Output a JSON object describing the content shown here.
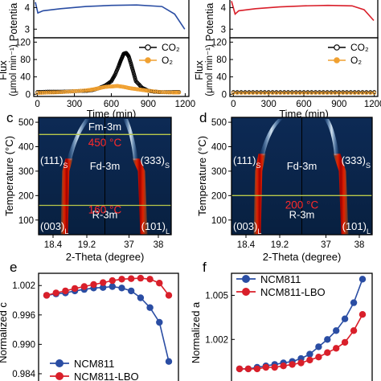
{
  "panel_labels": {
    "c": "c",
    "d": "d",
    "e": "e",
    "f": "f"
  },
  "colors": {
    "ncm811": "#2a4da3",
    "lbo": "#d91f2a",
    "co2": "#000000",
    "o2": "#f0a030",
    "phase_line": "#b8c84a",
    "heatmap_bg": "#08234a",
    "red_text": "#ff2a2a"
  },
  "chart_data": [
    {
      "id": "ab-potential-left",
      "type": "line",
      "ylabel": "Potentia",
      "yticks": [
        "4",
        "3"
      ],
      "ylim": [
        2.6,
        4.5
      ],
      "xlim": [
        0,
        1200
      ],
      "series": [
        {
          "color": "#2a4da3",
          "x": [
            0,
            20,
            60,
            200,
            400,
            600,
            800,
            1000,
            1100,
            1180
          ],
          "y": [
            4.25,
            3.75,
            3.85,
            3.95,
            4.05,
            4.1,
            4.12,
            4.05,
            3.7,
            3.0
          ]
        }
      ]
    },
    {
      "id": "ab-flux-left",
      "type": "line",
      "ylabel": "Flux",
      "ylabel2": "(μmol min⁻¹)",
      "xlabel": "Time (min)",
      "xticks": [
        0,
        300,
        600,
        900,
        1200
      ],
      "yticks": [
        0,
        40,
        80,
        120
      ],
      "xlim": [
        -30,
        1230
      ],
      "ylim": [
        -5,
        130
      ],
      "legend": [
        "CO₂",
        "O₂"
      ],
      "series": [
        {
          "name": "CO₂",
          "color": "#000000",
          "x": [
            0,
            100,
            200,
            300,
            400,
            450,
            500,
            550,
            600,
            630,
            660,
            680,
            700,
            720,
            740,
            760,
            780,
            800,
            850,
            900,
            950,
            1000,
            1100,
            1150
          ],
          "y": [
            5,
            6,
            6,
            7,
            8,
            10,
            14,
            20,
            30,
            45,
            65,
            80,
            93,
            95,
            88,
            70,
            50,
            30,
            15,
            8,
            6,
            5,
            5,
            5
          ]
        },
        {
          "name": "O₂",
          "color": "#f0a030",
          "x": [
            0,
            100,
            200,
            300,
            400,
            450,
            500,
            550,
            600,
            650,
            700,
            750,
            800,
            850,
            900,
            1000,
            1100,
            1150
          ],
          "y": [
            3,
            4,
            5,
            7,
            9,
            11,
            14,
            17,
            18,
            19,
            17,
            14,
            12,
            10,
            8,
            5,
            4,
            4
          ]
        }
      ]
    },
    {
      "id": "ab-potential-right",
      "type": "line",
      "ylabel": "Potentia",
      "yticks": [
        "4",
        "3"
      ],
      "ylim": [
        2.6,
        4.5
      ],
      "xlim": [
        0,
        1200
      ],
      "series": [
        {
          "color": "#d91f2a",
          "x": [
            0,
            30,
            60,
            200,
            400,
            600,
            800,
            1000,
            1100,
            1180
          ],
          "y": [
            4.3,
            3.7,
            3.85,
            3.95,
            4.03,
            4.08,
            4.1,
            4.08,
            3.9,
            3.4
          ]
        }
      ]
    },
    {
      "id": "ab-flux-right",
      "type": "line",
      "ylabel": "Flux",
      "ylabel2": "(μmol min⁻¹)",
      "xlabel": "Time (min)",
      "xticks": [
        0,
        300,
        600,
        900,
        1200
      ],
      "yticks": [
        0,
        40,
        80,
        120
      ],
      "xlim": [
        -30,
        1230
      ],
      "ylim": [
        -5,
        130
      ],
      "legend": [
        "CO₂",
        "O₂"
      ],
      "series": [
        {
          "name": "CO₂",
          "color": "#000000",
          "x": [
            0,
            200,
            400,
            600,
            800,
            1000,
            1200
          ],
          "y": [
            5,
            5,
            5,
            5,
            5,
            5,
            5
          ]
        },
        {
          "name": "O₂",
          "color": "#f0a030",
          "x": [
            0,
            200,
            400,
            600,
            800,
            1000,
            1200
          ],
          "y": [
            3,
            3,
            3,
            3,
            3,
            3,
            3
          ]
        }
      ]
    },
    {
      "id": "c",
      "type": "heatmap",
      "ylabel": "Temperature (°C)",
      "xlabel": "2-Theta (degree)",
      "yticks": [
        500,
        400,
        300,
        200,
        100
      ],
      "ylim": [
        40,
        520
      ],
      "xticks_left": [
        "18.4",
        "19.2"
      ],
      "xticks_right": [
        "37",
        "38"
      ],
      "phases": [
        "Fm-3m",
        "Fd-3m",
        "R-3m"
      ],
      "peaks": [
        "(111)",
        "(333)",
        "(003)",
        "(101)"
      ],
      "peak_subscripts": [
        "S",
        "S",
        "L",
        "L"
      ],
      "phase_transitions": [
        450,
        160
      ],
      "transition_labels": [
        "450 °C",
        "160 °C"
      ]
    },
    {
      "id": "d",
      "type": "heatmap",
      "ylabel": "Temperature (°C)",
      "xlabel": "2-Theta (degree)",
      "yticks": [
        500,
        400,
        300,
        200,
        100
      ],
      "ylim": [
        40,
        520
      ],
      "xticks_left": [
        "18.4",
        "19.2"
      ],
      "xticks_right": [
        "37",
        "38"
      ],
      "phases": [
        "Fd-3m",
        "R-3m"
      ],
      "peaks": [
        "(111)",
        "(333)",
        "(003)",
        "(101)"
      ],
      "peak_subscripts": [
        "S",
        "S",
        "L",
        "L"
      ],
      "phase_transitions": [
        200
      ],
      "transition_labels": [
        "200 °C"
      ]
    },
    {
      "id": "e",
      "type": "line",
      "ylabel": "Normalized c",
      "yticks": [
        "1.002",
        "0.996",
        "0.990",
        "0.984"
      ],
      "ylim": [
        0.9835,
        1.0045
      ],
      "legend": [
        "NCM811",
        "NCM811-LBO"
      ],
      "series": [
        {
          "name": "NCM811",
          "color": "#2a4da3",
          "values": [
            1.0,
            1.0003,
            1.0005,
            1.0009,
            1.0012,
            1.0015,
            1.0016,
            1.0018,
            1.0015,
            1.0009,
            0.9995,
            0.9975,
            0.9945,
            0.9865
          ]
        },
        {
          "name": "NCM811-LBO",
          "color": "#d91f2a",
          "values": [
            1.0,
            1.0005,
            1.0009,
            1.0014,
            1.0018,
            1.0022,
            1.0026,
            1.003,
            1.0033,
            1.0034,
            1.0035,
            1.0033,
            1.0025,
            1.0
          ]
        }
      ]
    },
    {
      "id": "f",
      "type": "line",
      "ylabel": "Normalized a",
      "yticks": [
        "1.005",
        "1.002"
      ],
      "ylim": [
        0.9995,
        1.0065
      ],
      "legend": [
        "NCM811",
        "NCM811-LBO"
      ],
      "series": [
        {
          "name": "NCM811",
          "color": "#2a4da3",
          "values": [
            1.0,
            1.0,
            1.0001,
            1.0002,
            1.0003,
            1.0004,
            1.0005,
            1.0007,
            1.001,
            1.0015,
            1.002,
            1.0026,
            1.0034,
            1.0045,
            1.0061
          ]
        },
        {
          "name": "NCM811-LBO",
          "color": "#d91f2a",
          "values": [
            1.0,
            1.0,
            1.0,
            1.0001,
            1.0001,
            1.0002,
            1.0003,
            1.0004,
            1.0006,
            1.0008,
            1.0011,
            1.0014,
            1.0018,
            1.0026,
            1.0037
          ]
        }
      ]
    }
  ]
}
